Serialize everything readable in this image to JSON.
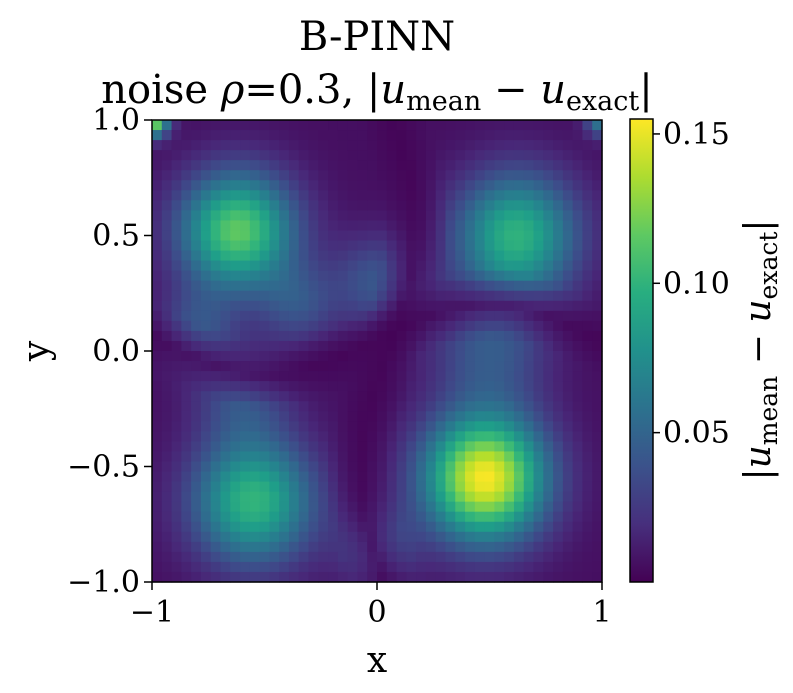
{
  "chart_data": {
    "type": "heatmap",
    "title": "B-PINN",
    "subtitle": {
      "prefix": "noise ",
      "rho": "ρ",
      "eq_value": "=0.3, ",
      "abs_open": "|",
      "u1": "u",
      "sub1": "mean",
      "minus": " − ",
      "u2": "u",
      "sub2": "exact",
      "abs_close": "|"
    },
    "xlabel": "x",
    "ylabel": "y",
    "xlim": [
      -1,
      1
    ],
    "ylim": [
      -1,
      1
    ],
    "x_ticks": [
      -1,
      0,
      1
    ],
    "x_tick_labels": [
      "−1",
      "0",
      "1"
    ],
    "y_ticks": [
      1.0,
      0.5,
      0.0,
      -0.5,
      -1.0
    ],
    "y_tick_labels": [
      "1.0",
      "0.5",
      "0.0",
      "−0.5",
      "−1.0"
    ],
    "colormap": "viridis",
    "color_range": [
      0.0,
      0.155
    ],
    "colorbar_ticks": [
      0.15,
      0.1,
      0.05
    ],
    "colorbar_tick_labels": [
      "0.15",
      "0.10",
      "0.05"
    ],
    "colorbar_label": {
      "abs_open": "|",
      "u1": "u",
      "sub1": "mean",
      "minus": " − ",
      "u2": "u",
      "sub2": "exact",
      "abs_close": "|"
    },
    "peaks": [
      {
        "x": 0.48,
        "y": -0.55,
        "value": 0.155
      },
      {
        "x": -0.62,
        "y": 0.52,
        "value": 0.12
      },
      {
        "x": 0.62,
        "y": 0.5,
        "value": 0.1
      },
      {
        "x": -0.55,
        "y": -0.65,
        "value": 0.1
      },
      {
        "x": -1.0,
        "y": 1.0,
        "value": 0.14
      }
    ],
    "grid": false
  }
}
